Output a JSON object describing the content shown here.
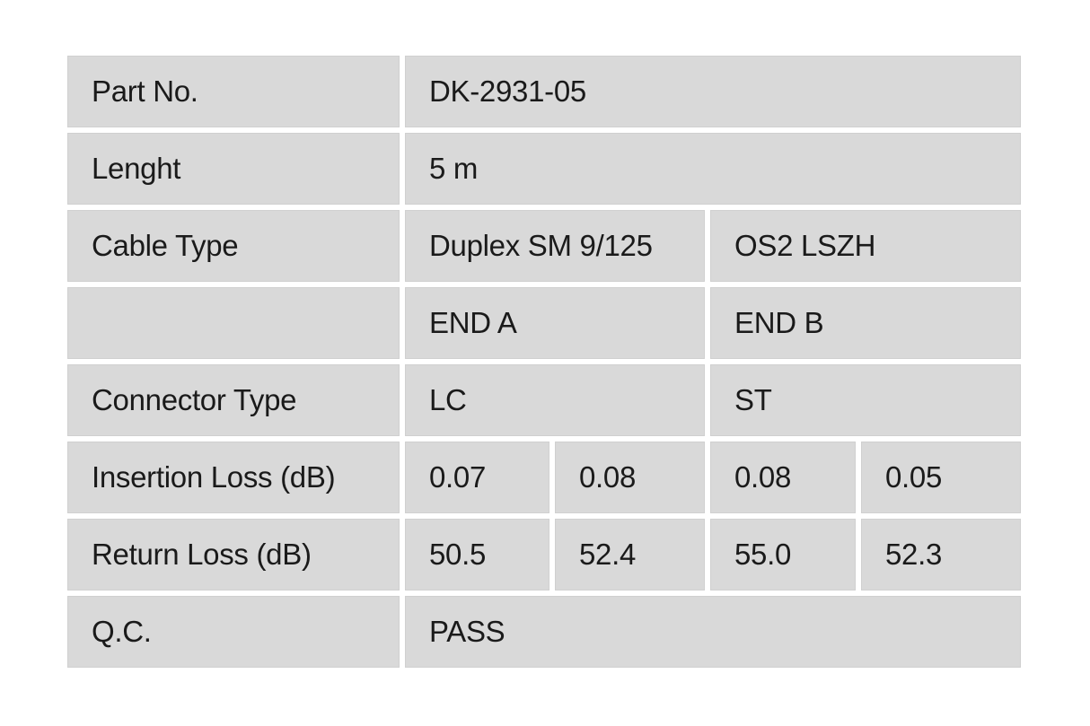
{
  "table": {
    "cell_color": "#d9d9d9",
    "gap_color": "#ffffff",
    "text_color": "#1a1a1a",
    "rows": [
      {
        "label": "Part No.",
        "values": [
          "DK-2931-05"
        ]
      },
      {
        "label": "Lenght",
        "values": [
          "5 m"
        ]
      },
      {
        "label": "Cable Type",
        "values": [
          "Duplex SM 9/125",
          "OS2 LSZH"
        ]
      },
      {
        "label": "",
        "values": [
          "END A",
          "END B"
        ]
      },
      {
        "label": "Connector Type",
        "values": [
          "LC",
          "ST"
        ]
      },
      {
        "label": "Insertion Loss (dB)",
        "values": [
          "0.07",
          "0.08",
          "0.08",
          "0.05"
        ]
      },
      {
        "label": "Return Loss (dB)",
        "values": [
          "50.5",
          "52.4",
          "55.0",
          "52.3"
        ]
      },
      {
        "label": "Q.C.",
        "values": [
          "PASS"
        ]
      }
    ]
  }
}
